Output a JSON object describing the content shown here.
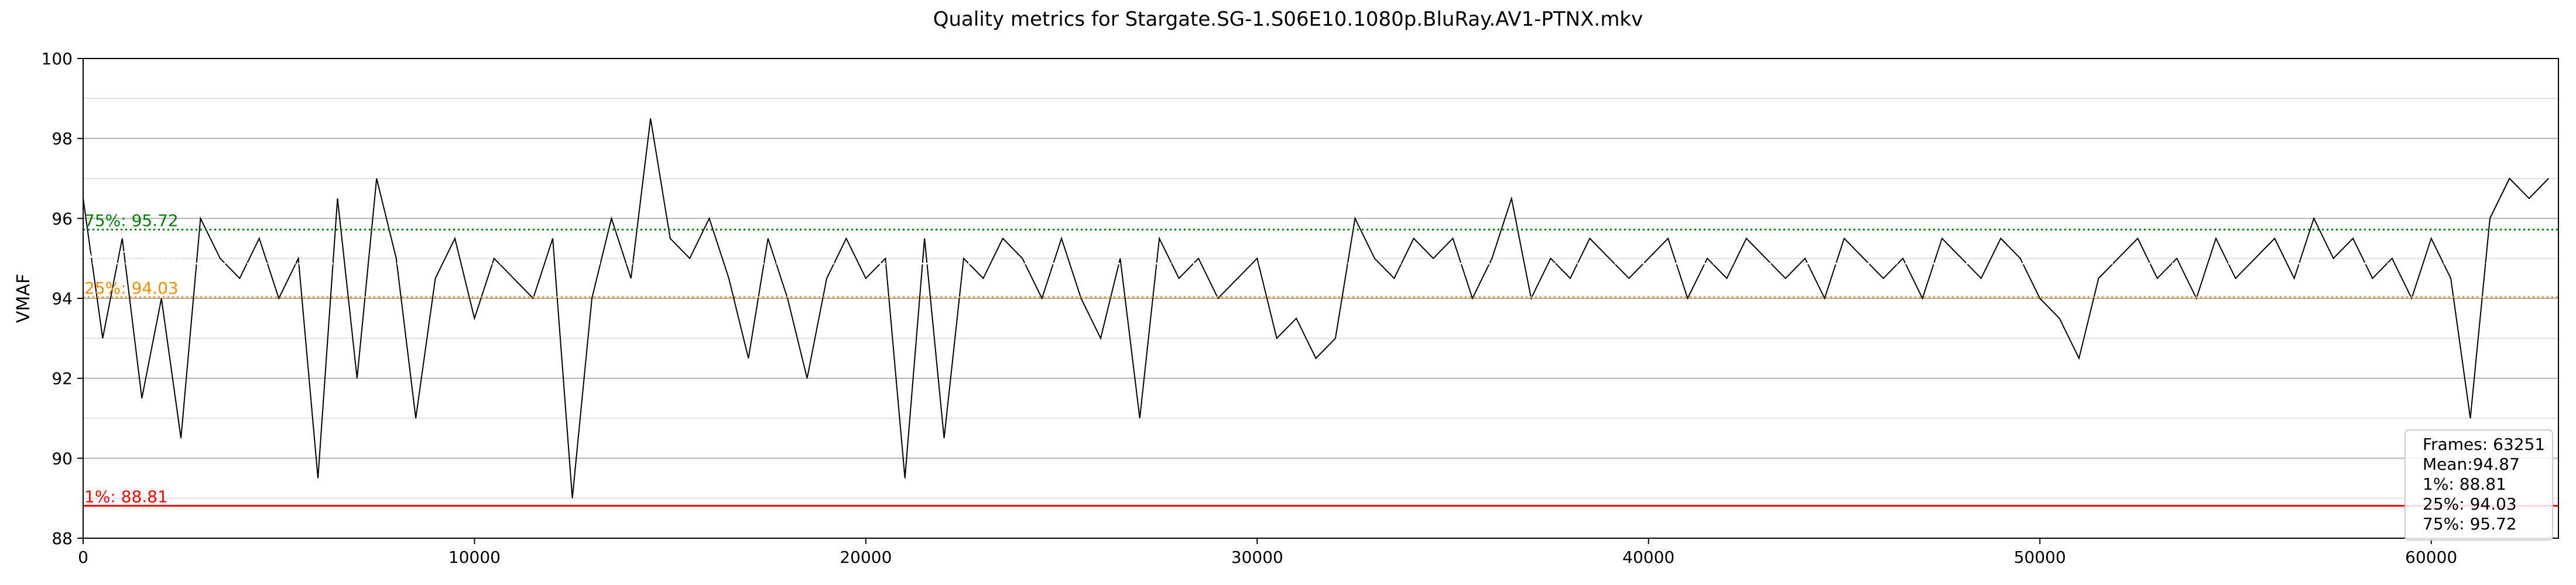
{
  "chart_data": {
    "type": "line",
    "title": "Quality metrics for Stargate.SG-1.S06E10.1080p.BluRay.AV1-PTNX.mkv",
    "xlabel": "",
    "ylabel": "VMAF",
    "xlim": [
      0,
      63251
    ],
    "ylim": [
      88,
      100
    ],
    "x_ticks": [
      0,
      10000,
      20000,
      30000,
      40000,
      50000,
      60000
    ],
    "x_tick_labels": [
      "0",
      "10000",
      "20000",
      "30000",
      "40000",
      "50000",
      "60000"
    ],
    "y_ticks": [
      88,
      90,
      92,
      94,
      96,
      98,
      100
    ],
    "y_tick_labels": [
      "88",
      "90",
      "92",
      "94",
      "96",
      "98",
      "100"
    ],
    "grid": true,
    "series": [
      {
        "color": "#000000",
        "x": [
          0,
          500,
          1000,
          1500,
          2000,
          2500,
          3000,
          3500,
          4000,
          4500,
          5000,
          5500,
          6000,
          6500,
          7000,
          7500,
          8000,
          8500,
          9000,
          9500,
          10000,
          10500,
          11000,
          11500,
          12000,
          12500,
          13000,
          13500,
          14000,
          14500,
          15000,
          15500,
          16000,
          16500,
          17000,
          17500,
          18000,
          18500,
          19000,
          19500,
          20000,
          20500,
          21000,
          21500,
          22000,
          22500,
          23000,
          23500,
          24000,
          24500,
          25000,
          25500,
          26000,
          26500,
          27000,
          27500,
          28000,
          28500,
          29000,
          29500,
          30000,
          30500,
          31000,
          31500,
          32000,
          32500,
          33000,
          33500,
          34000,
          34500,
          35000,
          35500,
          36000,
          36500,
          37000,
          37500,
          38000,
          38500,
          39000,
          39500,
          40000,
          40500,
          41000,
          41500,
          42000,
          42500,
          43000,
          43500,
          44000,
          44500,
          45000,
          45500,
          46000,
          46500,
          47000,
          47500,
          48000,
          48500,
          49000,
          49500,
          50000,
          50500,
          51000,
          51500,
          52000,
          52500,
          53000,
          53500,
          54000,
          54500,
          55000,
          55500,
          56000,
          56500,
          57000,
          57500,
          58000,
          58500,
          59000,
          59500,
          60000,
          60500,
          61000,
          61500,
          62000,
          62500,
          63000
        ],
        "y": [
          96.5,
          93.0,
          95.5,
          91.5,
          94.0,
          90.5,
          96.0,
          95.0,
          94.5,
          95.5,
          94.0,
          95.0,
          89.5,
          96.5,
          92.0,
          97.0,
          95.0,
          91.0,
          94.5,
          95.5,
          93.5,
          95.0,
          94.5,
          94.0,
          95.5,
          89.0,
          94.0,
          96.0,
          94.5,
          98.5,
          95.5,
          95.0,
          96.0,
          94.5,
          92.5,
          95.5,
          94.0,
          92.0,
          94.5,
          95.5,
          94.5,
          95.0,
          89.5,
          95.5,
          90.5,
          95.0,
          94.5,
          95.5,
          95.0,
          94.0,
          95.5,
          94.0,
          93.0,
          95.0,
          91.0,
          95.5,
          94.5,
          95.0,
          94.0,
          94.5,
          95.0,
          93.0,
          93.5,
          92.5,
          93.0,
          96.0,
          95.0,
          94.5,
          95.5,
          95.0,
          95.5,
          94.0,
          95.0,
          96.5,
          94.0,
          95.0,
          94.5,
          95.5,
          95.0,
          94.5,
          95.0,
          95.5,
          94.0,
          95.0,
          94.5,
          95.5,
          95.0,
          94.5,
          95.0,
          94.0,
          95.5,
          95.0,
          94.5,
          95.0,
          94.0,
          95.5,
          95.0,
          94.5,
          95.5,
          95.0,
          94.0,
          93.5,
          92.5,
          94.5,
          95.0,
          95.5,
          94.5,
          95.0,
          94.0,
          95.5,
          94.5,
          95.0,
          95.5,
          94.5,
          96.0,
          95.0,
          95.5,
          94.5,
          95.0,
          94.0,
          95.5,
          94.5,
          91.0,
          96.0,
          97.0,
          96.5,
          97.0
        ]
      }
    ],
    "reference_lines": [
      {
        "key": "p75",
        "value": 95.72,
        "label": "75%: 95.72",
        "color": "#008000",
        "style": "dotted"
      },
      {
        "key": "mean",
        "value": 94.87,
        "label": "Mean: 94.87",
        "color": "#ffffff",
        "style": "dotted"
      },
      {
        "key": "p25",
        "value": 94.03,
        "label": "25%: 94.03",
        "color": "#ff8c00",
        "style": "dotted"
      },
      {
        "key": "p1",
        "value": 88.81,
        "label": "1%: 88.81",
        "color": "#ff0000",
        "style": "solid"
      }
    ],
    "stats_box": {
      "placement": "lower-right",
      "lines": [
        "Frames: 63251",
        "Mean:94.87",
        "1%: 88.81",
        "25%: 94.03",
        "75%: 95.72"
      ]
    }
  }
}
